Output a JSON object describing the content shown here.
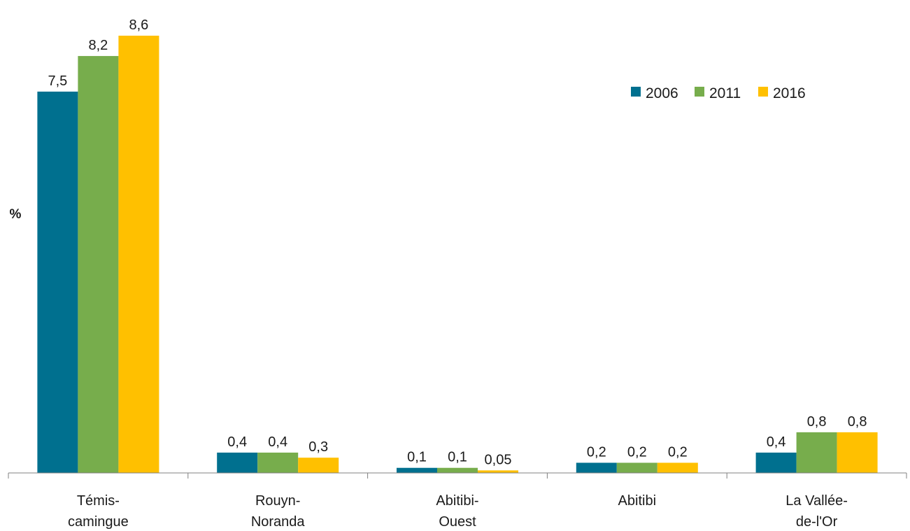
{
  "chart_data": {
    "type": "bar",
    "title": "",
    "xlabel": "",
    "ylabel": "%",
    "ylim": [
      0,
      8.6
    ],
    "grid": false,
    "legend_position": "top-right",
    "categories": [
      [
        "Témis-",
        "camingue"
      ],
      [
        "Rouyn-",
        "Noranda"
      ],
      [
        "Abitibi-",
        "Ouest"
      ],
      [
        "Abitibi"
      ],
      [
        "La Vallée-",
        "de-l'Or"
      ]
    ],
    "series": [
      {
        "name": "2006",
        "color": "#00708F",
        "values": [
          7.5,
          0.4,
          0.1,
          0.2,
          0.4
        ],
        "labels": [
          "7,5",
          "0,4",
          "0,1",
          "0,2",
          "0,4"
        ]
      },
      {
        "name": "2011",
        "color": "#77AD4C",
        "values": [
          8.2,
          0.4,
          0.1,
          0.2,
          0.8
        ],
        "labels": [
          "8,2",
          "0,4",
          "0,1",
          "0,2",
          "0,8"
        ]
      },
      {
        "name": "2016",
        "color": "#FFC000",
        "values": [
          8.6,
          0.3,
          0.05,
          0.2,
          0.8
        ],
        "labels": [
          "8,6",
          "0,3",
          "0,05",
          "0,2",
          "0,8"
        ]
      }
    ]
  }
}
